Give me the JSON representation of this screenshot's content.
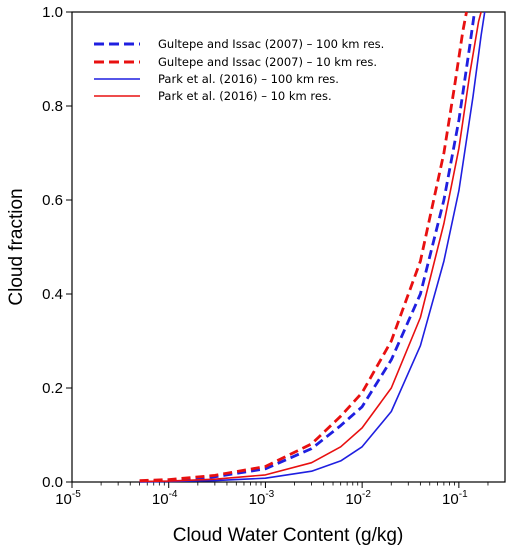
{
  "chart_data": {
    "type": "line",
    "title": "",
    "xlabel": "Cloud Water Content (g/kg)",
    "ylabel": "Cloud fraction",
    "xscale": "log",
    "xlim": [
      1e-05,
      0.3
    ],
    "ylim": [
      0,
      1.0
    ],
    "x_ticks": [
      {
        "base": "10",
        "exp": "-5",
        "value": 1e-05
      },
      {
        "base": "10",
        "exp": "-4",
        "value": 0.0001
      },
      {
        "base": "10",
        "exp": "-3",
        "value": 0.001
      },
      {
        "base": "10",
        "exp": "-2",
        "value": 0.01
      },
      {
        "base": "10",
        "exp": "-1",
        "value": 0.1
      }
    ],
    "y_ticks": [
      "0.0",
      "0.2",
      "0.4",
      "0.6",
      "0.8",
      "1.0"
    ],
    "grid": false,
    "legend_position": "top-left",
    "series": [
      {
        "name": "Gultepe and Issac (2007) – 100 km res.",
        "color": "#1f1fe0",
        "style": "dashed",
        "x": [
          5e-05,
          0.0001,
          0.0003,
          0.001,
          0.003,
          0.006,
          0.01,
          0.02,
          0.04,
          0.07,
          0.1,
          0.13,
          0.145
        ],
        "y": [
          0.002,
          0.004,
          0.011,
          0.028,
          0.071,
          0.12,
          0.16,
          0.26,
          0.4,
          0.6,
          0.77,
          0.93,
          1.0
        ]
      },
      {
        "name": "Gultepe and Issac (2007) – 10 km res.",
        "color": "#e81010",
        "style": "dashed",
        "x": [
          5e-05,
          0.0001,
          0.0003,
          0.001,
          0.003,
          0.006,
          0.01,
          0.02,
          0.04,
          0.07,
          0.09,
          0.11,
          0.12
        ],
        "y": [
          0.003,
          0.005,
          0.014,
          0.033,
          0.081,
          0.14,
          0.19,
          0.3,
          0.47,
          0.7,
          0.84,
          0.96,
          1.0
        ]
      },
      {
        "name": "Park et al. (2016) – 100 km res.",
        "color": "#1f1fe0",
        "style": "solid",
        "x": [
          5e-05,
          0.0001,
          0.0003,
          0.001,
          0.003,
          0.006,
          0.01,
          0.02,
          0.04,
          0.07,
          0.1,
          0.14,
          0.17,
          0.185
        ],
        "y": [
          0.0,
          0.001,
          0.003,
          0.008,
          0.023,
          0.045,
          0.075,
          0.15,
          0.29,
          0.47,
          0.62,
          0.82,
          0.95,
          1.0
        ]
      },
      {
        "name": "Park et al. (2016) – 10 km res.",
        "color": "#e81010",
        "style": "solid",
        "x": [
          5e-05,
          0.0001,
          0.0003,
          0.001,
          0.003,
          0.006,
          0.01,
          0.02,
          0.04,
          0.07,
          0.1,
          0.13,
          0.16,
          0.17
        ],
        "y": [
          0.001,
          0.002,
          0.006,
          0.015,
          0.041,
          0.075,
          0.115,
          0.2,
          0.35,
          0.55,
          0.71,
          0.87,
          0.98,
          1.0
        ]
      }
    ]
  }
}
